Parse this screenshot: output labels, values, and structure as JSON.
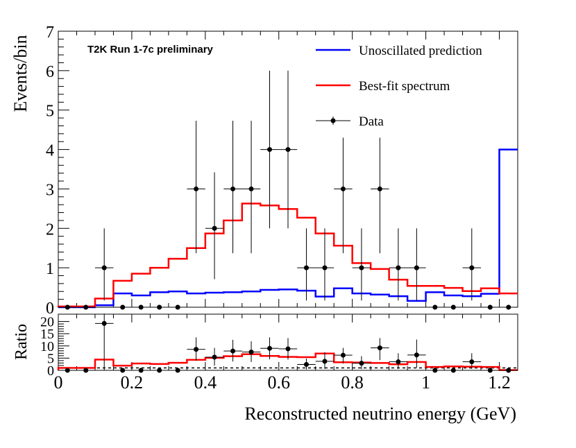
{
  "chart_data": [
    {
      "type": "line",
      "panel": "main",
      "annotation": "T2K Run 1-7c preliminary",
      "xlabel": "Reconstructed neutrino energy (GeV)",
      "ylabel": "Events/bin",
      "xlim": [
        0,
        1.25
      ],
      "ylim": [
        0,
        7
      ],
      "bin_width": 0.05,
      "x_ticks": [
        "0",
        "0.2",
        "0.4",
        "0.6",
        "0.8",
        "1",
        "1.2"
      ],
      "y_ticks": [
        "0",
        "1",
        "2",
        "3",
        "4",
        "5",
        "6",
        "7"
      ],
      "legend_position": "top-right",
      "series": [
        {
          "name": "Unoscillated prediction",
          "color": "#0000ff",
          "style": "step",
          "bin_edges": [
            0,
            0.05,
            0.1,
            0.15,
            0.2,
            0.25,
            0.3,
            0.35,
            0.4,
            0.45,
            0.5,
            0.55,
            0.6,
            0.65,
            0.7,
            0.75,
            0.8,
            0.85,
            0.9,
            0.95,
            1.0,
            1.05,
            1.1,
            1.15,
            1.2,
            1.25
          ],
          "values": [
            0.0,
            0.0,
            0.05,
            0.35,
            0.3,
            0.38,
            0.4,
            0.35,
            0.37,
            0.38,
            0.4,
            0.44,
            0.45,
            0.42,
            0.27,
            0.48,
            0.35,
            0.32,
            0.28,
            0.16,
            0.38,
            0.3,
            0.28,
            0.34,
            4.0
          ]
        },
        {
          "name": "Best-fit spectrum",
          "color": "#ff0000",
          "style": "step",
          "bin_edges": [
            0,
            0.05,
            0.1,
            0.15,
            0.2,
            0.25,
            0.3,
            0.35,
            0.4,
            0.45,
            0.5,
            0.55,
            0.6,
            0.65,
            0.7,
            0.75,
            0.8,
            0.85,
            0.9,
            0.95,
            1.0,
            1.05,
            1.1,
            1.15,
            1.2,
            1.25
          ],
          "values": [
            0.02,
            0.02,
            0.22,
            0.67,
            0.85,
            1.0,
            1.23,
            1.5,
            1.87,
            2.2,
            2.63,
            2.58,
            2.49,
            2.27,
            1.87,
            1.56,
            1.12,
            0.97,
            0.7,
            0.54,
            0.54,
            0.49,
            0.41,
            0.48,
            0.35
          ]
        },
        {
          "name": "Data",
          "color": "#000000",
          "style": "points",
          "x": [
            0.025,
            0.075,
            0.125,
            0.175,
            0.225,
            0.275,
            0.325,
            0.375,
            0.425,
            0.475,
            0.525,
            0.575,
            0.625,
            0.675,
            0.725,
            0.775,
            0.825,
            0.875,
            0.925,
            0.975,
            1.025,
            1.075,
            1.125,
            1.175,
            1.225
          ],
          "y": [
            0,
            0,
            1,
            0,
            0,
            0,
            0,
            3,
            2,
            3,
            3,
            4,
            4,
            1,
            1,
            3,
            1,
            3,
            1,
            1,
            0,
            0,
            1,
            0,
            0
          ],
          "err_low": [
            0,
            0,
            0.83,
            0,
            0,
            0,
            0,
            1.63,
            1.29,
            1.63,
            1.63,
            2.0,
            2.0,
            0.83,
            0.83,
            1.63,
            0.83,
            1.63,
            0.83,
            0.83,
            0,
            0,
            0.83,
            0,
            0
          ],
          "err_high": [
            0,
            0,
            1.0,
            0,
            0,
            0,
            0,
            1.73,
            1.42,
            1.73,
            1.73,
            2.0,
            2.0,
            1.0,
            1.0,
            1.3,
            1.0,
            1.3,
            1.0,
            1.0,
            0,
            0,
            1.0,
            0,
            0
          ]
        }
      ]
    },
    {
      "type": "line",
      "panel": "ratio",
      "ylabel": "Ratio",
      "xlim": [
        0,
        1.25
      ],
      "ylim": [
        0,
        23
      ],
      "x_ticks": [
        "0",
        "0.2",
        "0.4",
        "0.6",
        "0.8",
        "1",
        "1.2"
      ],
      "y_ticks": [
        "0",
        "5",
        "10",
        "15",
        "20"
      ],
      "reference_line": 1,
      "series": [
        {
          "name": "Best-fit spectrum",
          "color": "#ff0000",
          "style": "step",
          "bin_edges": [
            0,
            0.05,
            0.1,
            0.15,
            0.2,
            0.25,
            0.3,
            0.35,
            0.4,
            0.45,
            0.5,
            0.55,
            0.6,
            0.65,
            0.7,
            0.75,
            0.8,
            0.85,
            0.9,
            0.95,
            1.0,
            1.05,
            1.1,
            1.15,
            1.2,
            1.25
          ],
          "values": [
            1.0,
            1.0,
            4.4,
            1.9,
            2.8,
            2.6,
            3.1,
            4.3,
            5.1,
            5.8,
            6.6,
            5.9,
            5.5,
            5.4,
            6.9,
            3.3,
            3.2,
            3.0,
            2.5,
            3.4,
            1.4,
            1.6,
            1.5,
            1.4,
            0.1
          ]
        },
        {
          "name": "Data",
          "color": "#000000",
          "style": "points",
          "x": [
            0.025,
            0.075,
            0.125,
            0.175,
            0.225,
            0.275,
            0.325,
            0.375,
            0.425,
            0.475,
            0.525,
            0.575,
            0.625,
            0.675,
            0.725,
            0.775,
            0.825,
            0.875,
            0.925,
            0.975,
            1.025,
            1.075,
            1.125,
            1.175,
            1.225
          ],
          "y": [
            0,
            0,
            19.2,
            0,
            0,
            0,
            0,
            8.6,
            5.4,
            7.9,
            7.5,
            9.0,
            8.8,
            2.4,
            3.7,
            6.2,
            2.9,
            9.2,
            3.5,
            6.3,
            0,
            0,
            3.5,
            0,
            0
          ],
          "err_low": [
            0,
            0,
            19.2,
            0,
            0,
            0,
            0,
            4.6,
            3.5,
            4.3,
            4.1,
            4.5,
            4.4,
            2.0,
            3.1,
            3.4,
            2.4,
            5.0,
            2.9,
            5.2,
            0,
            0,
            2.9,
            0,
            0
          ],
          "err_high": [
            0,
            0,
            4.0,
            0,
            0,
            0,
            0,
            4.9,
            3.8,
            4.6,
            4.4,
            4.5,
            4.4,
            2.4,
            3.7,
            3.0,
            2.9,
            4.0,
            3.5,
            6.3,
            0,
            0,
            3.5,
            0,
            0
          ]
        }
      ]
    }
  ]
}
